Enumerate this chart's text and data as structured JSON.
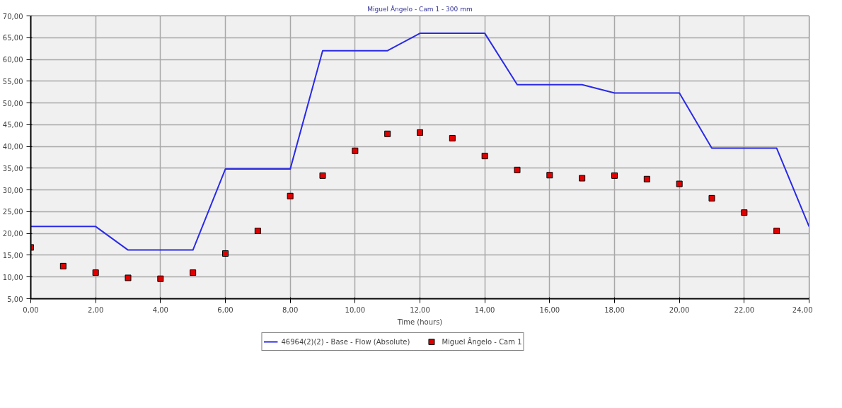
{
  "chart_data": {
    "type": "line",
    "title": "Miguel Ângelo - Cam 1 - 300 mm",
    "xlabel": "Time (hours)",
    "xlim": [
      0,
      24
    ],
    "ylim": [
      5,
      70
    ],
    "xticks": [
      {
        "value": 0,
        "label": "0,00"
      },
      {
        "value": 2,
        "label": "2,00"
      },
      {
        "value": 4,
        "label": "4,00"
      },
      {
        "value": 6,
        "label": "6,00"
      },
      {
        "value": 8,
        "label": "8,00"
      },
      {
        "value": 10,
        "label": "10,00"
      },
      {
        "value": 12,
        "label": "12,00"
      },
      {
        "value": 14,
        "label": "14,00"
      },
      {
        "value": 16,
        "label": "16,00"
      },
      {
        "value": 18,
        "label": "18,00"
      },
      {
        "value": 20,
        "label": "20,00"
      },
      {
        "value": 22,
        "label": "22,00"
      },
      {
        "value": 24,
        "label": "24,00"
      }
    ],
    "yticks": [
      {
        "value": 5,
        "label": "5,00"
      },
      {
        "value": 10,
        "label": "10,00"
      },
      {
        "value": 15,
        "label": "15,00"
      },
      {
        "value": 20,
        "label": "20,00"
      },
      {
        "value": 25,
        "label": "25,00"
      },
      {
        "value": 30,
        "label": "30,00"
      },
      {
        "value": 35,
        "label": "35,00"
      },
      {
        "value": 40,
        "label": "40,00"
      },
      {
        "value": 45,
        "label": "45,00"
      },
      {
        "value": 50,
        "label": "50,00"
      },
      {
        "value": 55,
        "label": "55,00"
      },
      {
        "value": 60,
        "label": "60,00"
      },
      {
        "value": 65,
        "label": "65,00"
      },
      {
        "value": 70,
        "label": "70,00"
      }
    ],
    "grid": true,
    "legend": "bottom",
    "series": [
      {
        "name": "46964(2)(2) - Base - Flow (Absolute)",
        "color": "#2a2ae8",
        "marker": "none",
        "line_style": "solid",
        "x": [
          0,
          2,
          3,
          5,
          6,
          8,
          9,
          11,
          12,
          14,
          15,
          17,
          18,
          20,
          21,
          23,
          24
        ],
        "values": [
          21.6,
          21.6,
          16.2,
          16.2,
          34.8,
          34.8,
          62,
          62,
          66,
          66,
          54.2,
          54.2,
          52.3,
          52.3,
          39.6,
          39.6,
          21.6
        ]
      },
      {
        "name": "Miguel Ângelo - Cam 1",
        "type": "scatter",
        "color": "#e00000",
        "marker": "square",
        "x": [
          0,
          1,
          2,
          3,
          4,
          5,
          6,
          7,
          8,
          9,
          10,
          11,
          12,
          13,
          14,
          15,
          16,
          17,
          18,
          19,
          20,
          21,
          22,
          23
        ],
        "values": [
          16.8,
          12.5,
          11,
          9.8,
          9.6,
          11,
          15.4,
          20.6,
          28.6,
          33.3,
          39,
          42.9,
          43.2,
          41.9,
          37.8,
          34.6,
          33.4,
          32.7,
          33.3,
          32.5,
          31.4,
          28.1,
          24.8,
          20.6
        ]
      }
    ]
  }
}
